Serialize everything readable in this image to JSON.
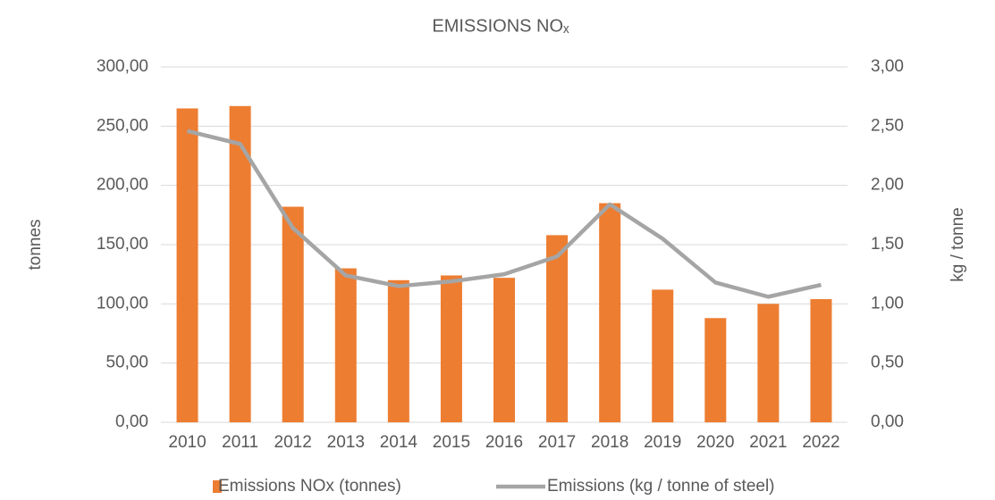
{
  "chart_data": {
    "type": "bar-line",
    "title": "EMISSIONS NOₓ",
    "y_label": "tonnes",
    "y2_label": "kg / tonne",
    "categories": [
      "2010",
      "2011",
      "2012",
      "2013",
      "2014",
      "2015",
      "2016",
      "2017",
      "2018",
      "2019",
      "2020",
      "2021",
      "2022"
    ],
    "series": [
      {
        "name": "Emissions NOx (tonnes)",
        "type": "bar",
        "color": "#ed7d31",
        "axis": "y",
        "values": [
          265,
          267,
          182,
          130,
          120,
          124,
          122,
          158,
          185,
          112,
          88,
          100,
          104
        ]
      },
      {
        "name": "Emissions (kg / tonne of steel)",
        "type": "line",
        "color": "#a5a5a5",
        "axis": "y2",
        "values": [
          2.46,
          2.35,
          1.64,
          1.24,
          1.15,
          1.19,
          1.25,
          1.4,
          1.84,
          1.55,
          1.18,
          1.06,
          1.16
        ]
      }
    ],
    "ylim": [
      0,
      300
    ],
    "yticks": [
      {
        "value": 0,
        "label": "0,00"
      },
      {
        "value": 50,
        "label": "50,00"
      },
      {
        "value": 100,
        "label": "100,00"
      },
      {
        "value": 150,
        "label": "150,00"
      },
      {
        "value": 200,
        "label": "200,00"
      },
      {
        "value": 250,
        "label": "250,00"
      },
      {
        "value": 300,
        "label": "300,00"
      }
    ],
    "y2lim": [
      0,
      3
    ],
    "y2ticks": [
      {
        "value": 0,
        "label": "0,00"
      },
      {
        "value": 0.5,
        "label": "0,50"
      },
      {
        "value": 1,
        "label": "1,00"
      },
      {
        "value": 1.5,
        "label": "1,50"
      },
      {
        "value": 2,
        "label": "2,00"
      },
      {
        "value": 2.5,
        "label": "2,50"
      },
      {
        "value": 3,
        "label": "3,00"
      }
    ],
    "grid": true,
    "legend": "bottom"
  }
}
